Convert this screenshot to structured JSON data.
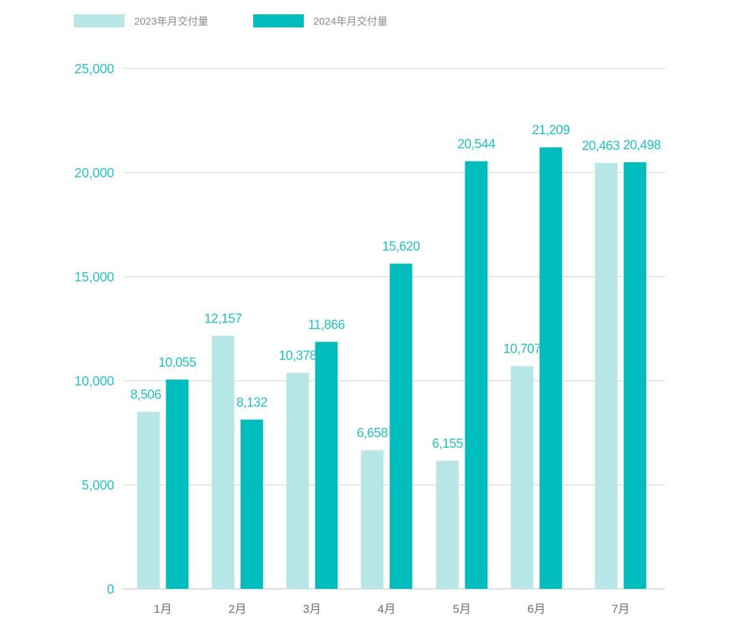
{
  "chart_data": {
    "type": "bar",
    "categories": [
      "1月",
      "2月",
      "3月",
      "4月",
      "5月",
      "6月",
      "7月"
    ],
    "series": [
      {
        "name": "2023年月交付量",
        "values": [
          8506,
          12157,
          10378,
          6658,
          6155,
          10707,
          20463
        ],
        "color": "#b6e6e6"
      },
      {
        "name": "2024年月交付量",
        "values": [
          10055,
          8132,
          11866,
          15620,
          20544,
          21209,
          20498
        ],
        "color": "#00bdbd"
      }
    ],
    "value_labels": [
      [
        "8,506",
        "12,157",
        "10,378",
        "6,658",
        "6,155",
        "10,707",
        "20,463"
      ],
      [
        "10,055",
        "8,132",
        "11,866",
        "15,620",
        "20,544",
        "21,209",
        "20,498"
      ]
    ],
    "yticks": [
      0,
      5000,
      10000,
      15000,
      20000,
      25000
    ],
    "ytick_labels": [
      "0",
      "5,000",
      "10,000",
      "15,000",
      "20,000",
      "25,000"
    ],
    "ylim": [
      0,
      25000
    ],
    "grid": true,
    "legend_position": "top-left",
    "colors": {
      "label": "#1fc4c4",
      "grid": "#cfcfcf",
      "axis": "#bdbdbd"
    }
  }
}
